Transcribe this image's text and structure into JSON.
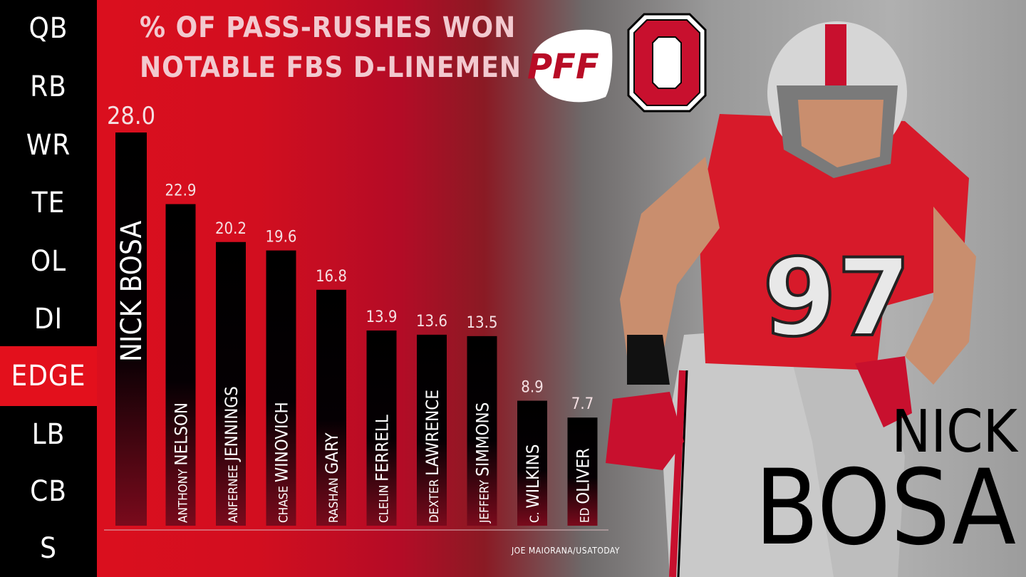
{
  "sidebar": {
    "items": [
      {
        "label": "QB",
        "active": false
      },
      {
        "label": "RB",
        "active": false
      },
      {
        "label": "WR",
        "active": false
      },
      {
        "label": "TE",
        "active": false
      },
      {
        "label": "OL",
        "active": false
      },
      {
        "label": "DI",
        "active": false
      },
      {
        "label": "EDGE",
        "active": true
      },
      {
        "label": "LB",
        "active": false
      },
      {
        "label": "CB",
        "active": false
      },
      {
        "label": "S",
        "active": false
      }
    ]
  },
  "logos": {
    "pff": "PFF",
    "team": "O"
  },
  "player_name": {
    "first": "NICK",
    "last": "BOSA"
  },
  "credit": "JOE MAIORANA/USATODAY",
  "colors": {
    "red": "#e3101c",
    "black": "#000000"
  },
  "chart_data": {
    "type": "bar",
    "title": "% OF PASS-RUSHES WON",
    "subtitle": "NOTABLE FBS D-LINEMEN",
    "categories": [
      {
        "first": "",
        "last": "NICK BOSA"
      },
      {
        "first": "ANTHONY",
        "last": "NELSON"
      },
      {
        "first": "ANFERNEE",
        "last": "JENNINGS"
      },
      {
        "first": "CHASE",
        "last": "WINOVICH"
      },
      {
        "first": "RASHAN",
        "last": "GARY"
      },
      {
        "first": "CLELIN",
        "last": "FERRELL"
      },
      {
        "first": "DEXTER",
        "last": "LAWRENCE"
      },
      {
        "first": "JEFFERY",
        "last": "SIMMONS"
      },
      {
        "first": "C.",
        "last": "WILKINS"
      },
      {
        "first": "ED",
        "last": "OLIVER"
      }
    ],
    "values": [
      28.0,
      22.9,
      20.2,
      19.6,
      16.8,
      13.9,
      13.6,
      13.5,
      8.9,
      7.7
    ],
    "value_labels": [
      "28.0",
      "22.9",
      "20.2",
      "19.6",
      "16.8",
      "13.9",
      "13.6",
      "13.5",
      "8.9",
      "7.7"
    ],
    "ylim": [
      0,
      28.0
    ]
  }
}
